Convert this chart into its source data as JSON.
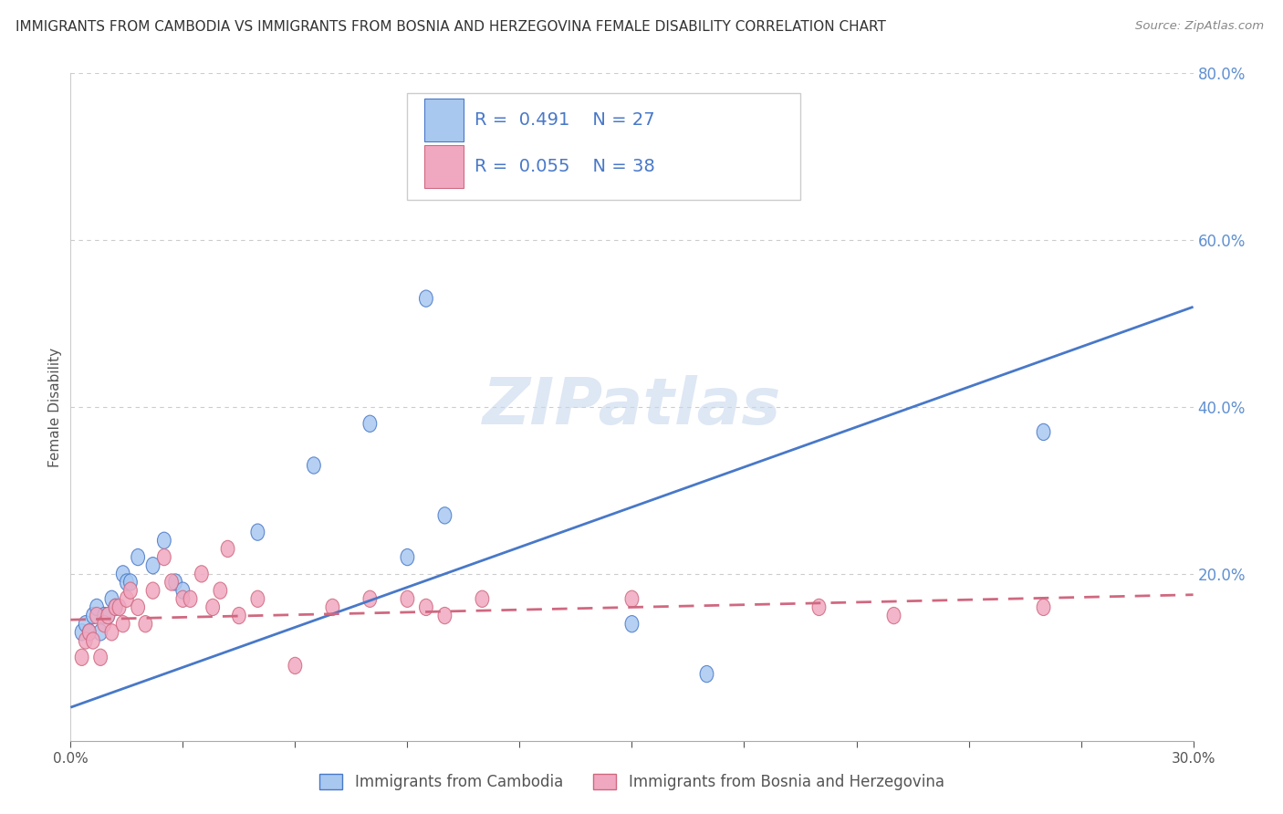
{
  "title": "IMMIGRANTS FROM CAMBODIA VS IMMIGRANTS FROM BOSNIA AND HERZEGOVINA FEMALE DISABILITY CORRELATION CHART",
  "source": "Source: ZipAtlas.com",
  "ylabel": "Female Disability",
  "legend1_R": "0.491",
  "legend1_N": "27",
  "legend2_R": "0.055",
  "legend2_N": "38",
  "series1_label": "Immigrants from Cambodia",
  "series2_label": "Immigrants from Bosnia and Herzegovina",
  "series1_color": "#a8c8f0",
  "series2_color": "#f0a8c0",
  "line1_color": "#4878c8",
  "line2_color": "#d06880",
  "watermark": "ZIPatlas",
  "xlim": [
    0.0,
    0.3
  ],
  "ylim": [
    0.0,
    0.8
  ],
  "series1_x": [
    0.003,
    0.004,
    0.005,
    0.006,
    0.007,
    0.008,
    0.009,
    0.01,
    0.011,
    0.012,
    0.014,
    0.015,
    0.016,
    0.018,
    0.022,
    0.025,
    0.028,
    0.03,
    0.05,
    0.065,
    0.08,
    0.09,
    0.095,
    0.1,
    0.15,
    0.17,
    0.26
  ],
  "series1_y": [
    0.13,
    0.14,
    0.13,
    0.15,
    0.16,
    0.13,
    0.15,
    0.15,
    0.17,
    0.16,
    0.2,
    0.19,
    0.19,
    0.22,
    0.21,
    0.24,
    0.19,
    0.18,
    0.25,
    0.33,
    0.38,
    0.22,
    0.53,
    0.27,
    0.14,
    0.08,
    0.37
  ],
  "series2_x": [
    0.003,
    0.004,
    0.005,
    0.006,
    0.007,
    0.008,
    0.009,
    0.01,
    0.011,
    0.012,
    0.013,
    0.014,
    0.015,
    0.016,
    0.018,
    0.02,
    0.022,
    0.025,
    0.027,
    0.03,
    0.032,
    0.035,
    0.038,
    0.04,
    0.042,
    0.045,
    0.05,
    0.06,
    0.07,
    0.08,
    0.09,
    0.095,
    0.1,
    0.11,
    0.15,
    0.2,
    0.22,
    0.26
  ],
  "series2_y": [
    0.1,
    0.12,
    0.13,
    0.12,
    0.15,
    0.1,
    0.14,
    0.15,
    0.13,
    0.16,
    0.16,
    0.14,
    0.17,
    0.18,
    0.16,
    0.14,
    0.18,
    0.22,
    0.19,
    0.17,
    0.17,
    0.2,
    0.16,
    0.18,
    0.23,
    0.15,
    0.17,
    0.09,
    0.16,
    0.17,
    0.17,
    0.16,
    0.15,
    0.17,
    0.17,
    0.16,
    0.15,
    0.16
  ],
  "line1_x0": 0.0,
  "line1_y0": 0.04,
  "line1_x1": 0.3,
  "line1_y1": 0.52,
  "line2_x0": 0.0,
  "line2_y0": 0.145,
  "line2_x1": 0.3,
  "line2_y1": 0.175
}
